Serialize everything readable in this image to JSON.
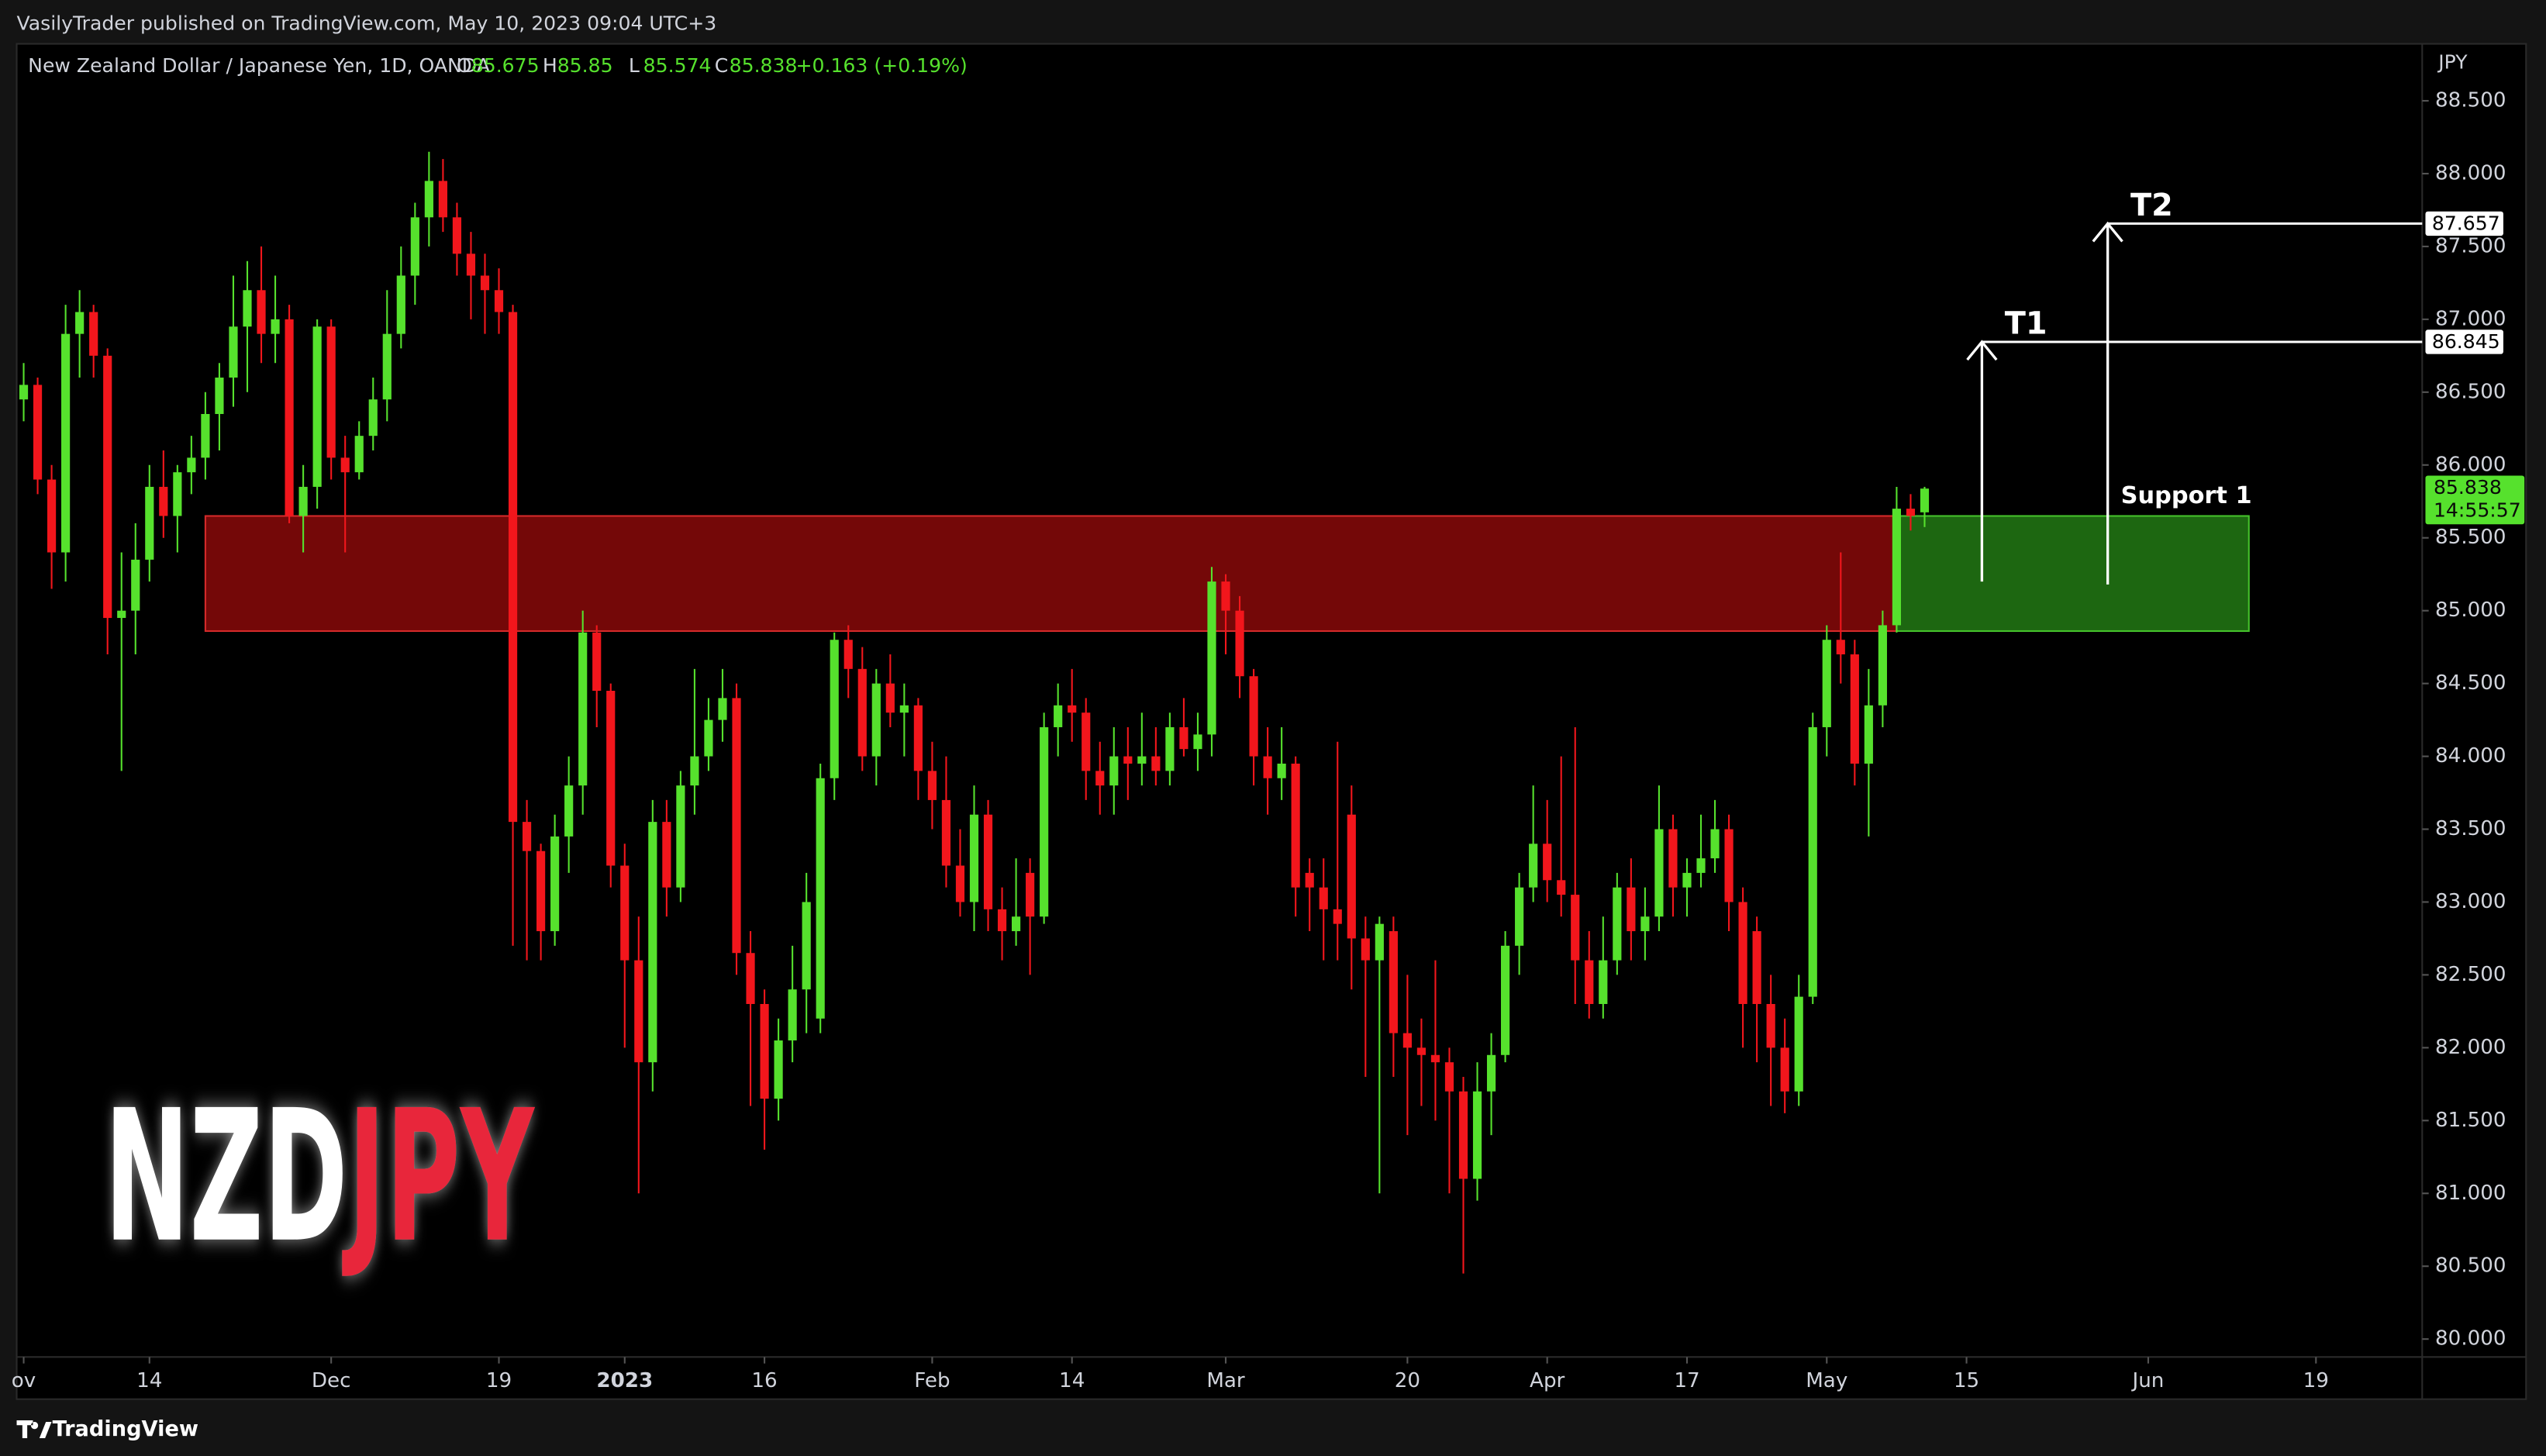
{
  "header": {
    "published": "VasilyTrader published on TradingView.com, May 10, 2023 09:04 UTC+3",
    "brand": "TradingView"
  },
  "chart_data": {
    "type": "candlestick",
    "title": "New Zealand Dollar / Japanese Yen, 1D, OANDA",
    "ohlc_labels": [
      "O",
      "H",
      "L",
      "C"
    ],
    "change": "+0.163 (+0.19%)",
    "currency": "JPY",
    "countdown": "14:55:57",
    "watermark": [
      "NZD",
      "JPY"
    ],
    "up_color": "#56e12d",
    "down_color": "#f2161c",
    "ohlc": [
      [
        86.45,
        86.7,
        86.3,
        86.55
      ],
      [
        86.55,
        86.6,
        85.8,
        85.9
      ],
      [
        85.9,
        86.0,
        85.15,
        85.4
      ],
      [
        85.4,
        87.1,
        85.2,
        86.9
      ],
      [
        86.9,
        87.2,
        86.6,
        87.05
      ],
      [
        87.05,
        87.1,
        86.6,
        86.75
      ],
      [
        86.75,
        86.8,
        84.7,
        84.95
      ],
      [
        84.95,
        85.4,
        83.9,
        85.0
      ],
      [
        85.0,
        85.6,
        84.7,
        85.35
      ],
      [
        85.35,
        86.0,
        85.2,
        85.85
      ],
      [
        85.85,
        86.1,
        85.5,
        85.65
      ],
      [
        85.65,
        86.0,
        85.4,
        85.95
      ],
      [
        85.95,
        86.2,
        85.8,
        86.05
      ],
      [
        86.05,
        86.5,
        85.9,
        86.35
      ],
      [
        86.35,
        86.7,
        86.1,
        86.6
      ],
      [
        86.6,
        87.3,
        86.4,
        86.95
      ],
      [
        86.95,
        87.4,
        86.5,
        87.2
      ],
      [
        87.2,
        87.5,
        86.7,
        86.9
      ],
      [
        86.9,
        87.3,
        86.7,
        87.0
      ],
      [
        87.0,
        87.1,
        85.6,
        85.65
      ],
      [
        85.65,
        86.0,
        85.4,
        85.85
      ],
      [
        85.85,
        87.0,
        85.7,
        86.95
      ],
      [
        86.95,
        87.0,
        85.9,
        86.05
      ],
      [
        86.05,
        86.2,
        85.4,
        85.95
      ],
      [
        85.95,
        86.3,
        85.9,
        86.2
      ],
      [
        86.2,
        86.6,
        86.1,
        86.45
      ],
      [
        86.45,
        87.2,
        86.3,
        86.9
      ],
      [
        86.9,
        87.5,
        86.8,
        87.3
      ],
      [
        87.3,
        87.8,
        87.1,
        87.7
      ],
      [
        87.7,
        88.15,
        87.5,
        87.95
      ],
      [
        87.95,
        88.1,
        87.6,
        87.7
      ],
      [
        87.7,
        87.8,
        87.3,
        87.45
      ],
      [
        87.45,
        87.6,
        87.0,
        87.3
      ],
      [
        87.3,
        87.45,
        86.9,
        87.2
      ],
      [
        87.2,
        87.35,
        86.9,
        87.05
      ],
      [
        87.05,
        87.1,
        82.7,
        83.55
      ],
      [
        83.55,
        83.7,
        82.6,
        83.35
      ],
      [
        83.35,
        83.4,
        82.6,
        82.8
      ],
      [
        82.8,
        83.6,
        82.7,
        83.45
      ],
      [
        83.45,
        84.0,
        83.2,
        83.8
      ],
      [
        83.8,
        85.0,
        83.6,
        84.85
      ],
      [
        84.85,
        84.9,
        84.2,
        84.45
      ],
      [
        84.45,
        84.5,
        83.1,
        83.25
      ],
      [
        83.25,
        83.4,
        82.0,
        82.6
      ],
      [
        82.6,
        82.9,
        81.0,
        81.9
      ],
      [
        81.9,
        83.7,
        81.7,
        83.55
      ],
      [
        83.55,
        83.7,
        82.9,
        83.1
      ],
      [
        83.1,
        83.9,
        83.0,
        83.8
      ],
      [
        83.8,
        84.6,
        83.6,
        84.0
      ],
      [
        84.0,
        84.4,
        83.9,
        84.25
      ],
      [
        84.25,
        84.6,
        84.1,
        84.4
      ],
      [
        84.4,
        84.5,
        82.5,
        82.65
      ],
      [
        82.65,
        82.8,
        81.6,
        82.3
      ],
      [
        82.3,
        82.4,
        81.3,
        81.65
      ],
      [
        81.65,
        82.2,
        81.5,
        82.05
      ],
      [
        82.05,
        82.7,
        81.9,
        82.4
      ],
      [
        82.4,
        83.2,
        82.1,
        83.0
      ],
      [
        82.2,
        83.95,
        82.1,
        83.85
      ],
      [
        83.85,
        84.85,
        83.7,
        84.8
      ],
      [
        84.8,
        84.9,
        84.4,
        84.6
      ],
      [
        84.6,
        84.75,
        83.9,
        84.0
      ],
      [
        84.0,
        84.6,
        83.8,
        84.5
      ],
      [
        84.5,
        84.7,
        84.2,
        84.3
      ],
      [
        84.3,
        84.5,
        84.0,
        84.35
      ],
      [
        84.35,
        84.4,
        83.7,
        83.9
      ],
      [
        83.9,
        84.1,
        83.5,
        83.7
      ],
      [
        83.7,
        84.0,
        83.1,
        83.25
      ],
      [
        83.25,
        83.5,
        82.9,
        83.0
      ],
      [
        83.0,
        83.8,
        82.8,
        83.6
      ],
      [
        83.6,
        83.7,
        82.8,
        82.95
      ],
      [
        82.95,
        83.1,
        82.6,
        82.8
      ],
      [
        82.8,
        83.3,
        82.7,
        82.9
      ],
      [
        83.2,
        83.3,
        82.5,
        82.9
      ],
      [
        82.9,
        84.3,
        82.85,
        84.2
      ],
      [
        84.2,
        84.5,
        84.0,
        84.35
      ],
      [
        84.35,
        84.6,
        84.1,
        84.3
      ],
      [
        84.3,
        84.4,
        83.7,
        83.9
      ],
      [
        83.9,
        84.1,
        83.6,
        83.8
      ],
      [
        83.8,
        84.2,
        83.6,
        84.0
      ],
      [
        84.0,
        84.2,
        83.7,
        83.95
      ],
      [
        83.95,
        84.3,
        83.8,
        84.0
      ],
      [
        84.0,
        84.2,
        83.8,
        83.9
      ],
      [
        83.9,
        84.3,
        83.8,
        84.2
      ],
      [
        84.2,
        84.4,
        84.0,
        84.05
      ],
      [
        84.05,
        84.3,
        83.9,
        84.15
      ],
      [
        84.15,
        85.3,
        84.0,
        85.2
      ],
      [
        85.2,
        85.25,
        84.7,
        85.0
      ],
      [
        85.0,
        85.1,
        84.4,
        84.55
      ],
      [
        84.55,
        84.6,
        83.8,
        84.0
      ],
      [
        84.0,
        84.2,
        83.6,
        83.85
      ],
      [
        83.85,
        84.2,
        83.7,
        83.95
      ],
      [
        83.95,
        84.0,
        82.9,
        83.1
      ],
      [
        83.2,
        83.3,
        82.8,
        83.1
      ],
      [
        83.1,
        83.3,
        82.6,
        82.95
      ],
      [
        82.95,
        84.1,
        82.6,
        82.85
      ],
      [
        83.6,
        83.8,
        82.4,
        82.75
      ],
      [
        82.75,
        82.9,
        81.8,
        82.6
      ],
      [
        82.6,
        82.9,
        81.0,
        82.85
      ],
      [
        82.8,
        82.9,
        81.8,
        82.1
      ],
      [
        82.1,
        82.5,
        81.4,
        82.0
      ],
      [
        82.0,
        82.2,
        81.6,
        81.95
      ],
      [
        81.95,
        82.6,
        81.5,
        81.9
      ],
      [
        81.9,
        82.0,
        81.0,
        81.7
      ],
      [
        81.7,
        81.8,
        80.45,
        81.1
      ],
      [
        81.1,
        81.9,
        80.95,
        81.7
      ],
      [
        81.7,
        82.1,
        81.4,
        81.95
      ],
      [
        81.95,
        82.8,
        81.9,
        82.7
      ],
      [
        82.7,
        83.2,
        82.5,
        83.1
      ],
      [
        83.1,
        83.8,
        83.0,
        83.4
      ],
      [
        83.4,
        83.7,
        83.0,
        83.15
      ],
      [
        83.15,
        84.0,
        82.9,
        83.05
      ],
      [
        83.05,
        84.2,
        82.3,
        82.6
      ],
      [
        82.6,
        82.8,
        82.2,
        82.3
      ],
      [
        82.3,
        82.9,
        82.2,
        82.6
      ],
      [
        82.6,
        83.2,
        82.5,
        83.1
      ],
      [
        83.1,
        83.3,
        82.6,
        82.8
      ],
      [
        82.8,
        83.1,
        82.6,
        82.9
      ],
      [
        82.9,
        83.8,
        82.8,
        83.5
      ],
      [
        83.5,
        83.6,
        82.9,
        83.1
      ],
      [
        83.1,
        83.3,
        82.9,
        83.2
      ],
      [
        83.2,
        83.6,
        83.1,
        83.3
      ],
      [
        83.3,
        83.7,
        83.2,
        83.5
      ],
      [
        83.5,
        83.6,
        82.8,
        83.0
      ],
      [
        83.0,
        83.1,
        82.0,
        82.3
      ],
      [
        82.8,
        82.9,
        81.9,
        82.3
      ],
      [
        82.3,
        82.5,
        81.6,
        82.0
      ],
      [
        82.0,
        82.2,
        81.55,
        81.7
      ],
      [
        81.7,
        82.5,
        81.6,
        82.35
      ],
      [
        82.35,
        84.3,
        82.3,
        84.2
      ],
      [
        84.2,
        84.9,
        84.0,
        84.8
      ],
      [
        84.8,
        85.4,
        84.5,
        84.7
      ],
      [
        84.7,
        84.8,
        83.8,
        83.95
      ],
      [
        83.95,
        84.6,
        83.45,
        84.35
      ],
      [
        84.35,
        85.0,
        84.2,
        84.9
      ],
      [
        84.9,
        85.85,
        84.85,
        85.7
      ],
      [
        85.7,
        85.8,
        85.55,
        85.65
      ],
      [
        85.675,
        85.85,
        85.574,
        85.838
      ]
    ],
    "xlim": [
      -0.5,
      171.6
    ],
    "xticks": [
      {
        "value": 0,
        "label": "ov"
      },
      {
        "value": 9,
        "label": "14"
      },
      {
        "value": 22,
        "label": "Dec"
      },
      {
        "value": 34,
        "label": "19"
      },
      {
        "value": 43,
        "label": "2023",
        "bold": true
      },
      {
        "value": 53,
        "label": "16"
      },
      {
        "value": 65,
        "label": "Feb"
      },
      {
        "value": 75,
        "label": "14"
      },
      {
        "value": 86,
        "label": "Mar"
      },
      {
        "value": 99,
        "label": "20"
      },
      {
        "value": 109,
        "label": "Apr"
      },
      {
        "value": 119,
        "label": "17"
      },
      {
        "value": 129,
        "label": "May"
      },
      {
        "value": 139,
        "label": "15"
      },
      {
        "value": 152,
        "label": "Jun"
      },
      {
        "value": 164,
        "label": "19"
      }
    ],
    "ylim": [
      79.877,
      88.891
    ],
    "yticks": [
      {
        "value": 80,
        "label": "80.000"
      },
      {
        "value": 80.5,
        "label": "80.500"
      },
      {
        "value": 81,
        "label": "81.000"
      },
      {
        "value": 81.5,
        "label": "81.500"
      },
      {
        "value": 82,
        "label": "82.000"
      },
      {
        "value": 82.5,
        "label": "82.500"
      },
      {
        "value": 83,
        "label": "83.000"
      },
      {
        "value": 83.5,
        "label": "83.500"
      },
      {
        "value": 84,
        "label": "84.000"
      },
      {
        "value": 84.5,
        "label": "84.500"
      },
      {
        "value": 85,
        "label": "85.000"
      },
      {
        "value": 85.5,
        "label": "85.500"
      },
      {
        "value": 86,
        "label": "86.000"
      },
      {
        "value": 86.5,
        "label": "86.500"
      },
      {
        "value": 87,
        "label": "87.000"
      },
      {
        "value": 87.5,
        "label": "87.500"
      },
      {
        "value": 88,
        "label": "88.000"
      },
      {
        "value": 88.5,
        "label": "88.500"
      }
    ],
    "zones": [
      {
        "start": 13,
        "end": 134,
        "top": 85.65,
        "bottom": 84.86,
        "color": "#7a0808",
        "border": "#d42a2a"
      },
      {
        "start": 134,
        "end": 159.2,
        "top": 85.65,
        "bottom": 84.86,
        "color": "#1f6d12",
        "border": "#45c22c",
        "label": "Support 1"
      }
    ],
    "targets": [
      {
        "label": "T1",
        "x": 140.1,
        "from": 85.2,
        "value": 86.845
      },
      {
        "label": "T2",
        "x": 149.1,
        "from": 85.18,
        "value": 87.657
      }
    ]
  }
}
